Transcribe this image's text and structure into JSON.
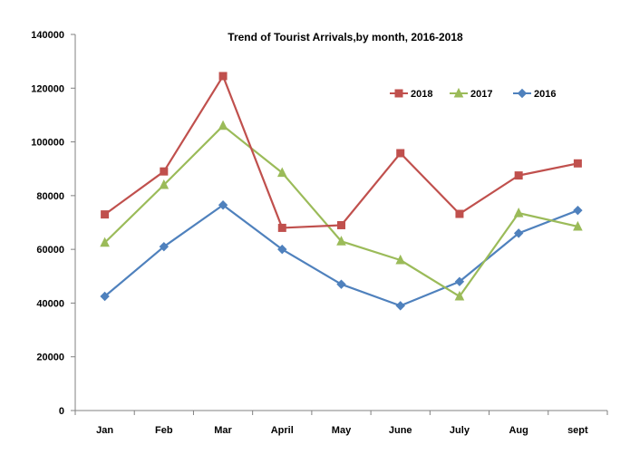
{
  "chart_data": {
    "type": "line",
    "title": "Trend of Tourist Arrivals,by month, 2016-2018",
    "xlabel": "",
    "ylabel": "",
    "categories": [
      "Jan",
      "Feb",
      "Mar",
      "April",
      "May",
      "June",
      "July",
      "Aug",
      "sept"
    ],
    "ylim": [
      0,
      140000
    ],
    "yticks": [
      "0",
      "20000",
      "40000",
      "60000",
      "80000",
      "100000",
      "120000",
      "140000"
    ],
    "grid": false,
    "legend_position": "top-right",
    "series": [
      {
        "name": "2018",
        "color": "#c0504d",
        "marker": "square",
        "values": [
          73000,
          89000,
          124500,
          68000,
          69000,
          95800,
          73200,
          87500,
          92000
        ]
      },
      {
        "name": "2017",
        "color": "#9bbb59",
        "marker": "triangle",
        "values": [
          62500,
          84000,
          106000,
          88500,
          63000,
          56000,
          42500,
          73500,
          68500
        ]
      },
      {
        "name": "2016",
        "color": "#4f81bd",
        "marker": "diamond",
        "values": [
          42500,
          61000,
          76500,
          60000,
          47000,
          39000,
          48000,
          66000,
          74500
        ]
      }
    ]
  }
}
